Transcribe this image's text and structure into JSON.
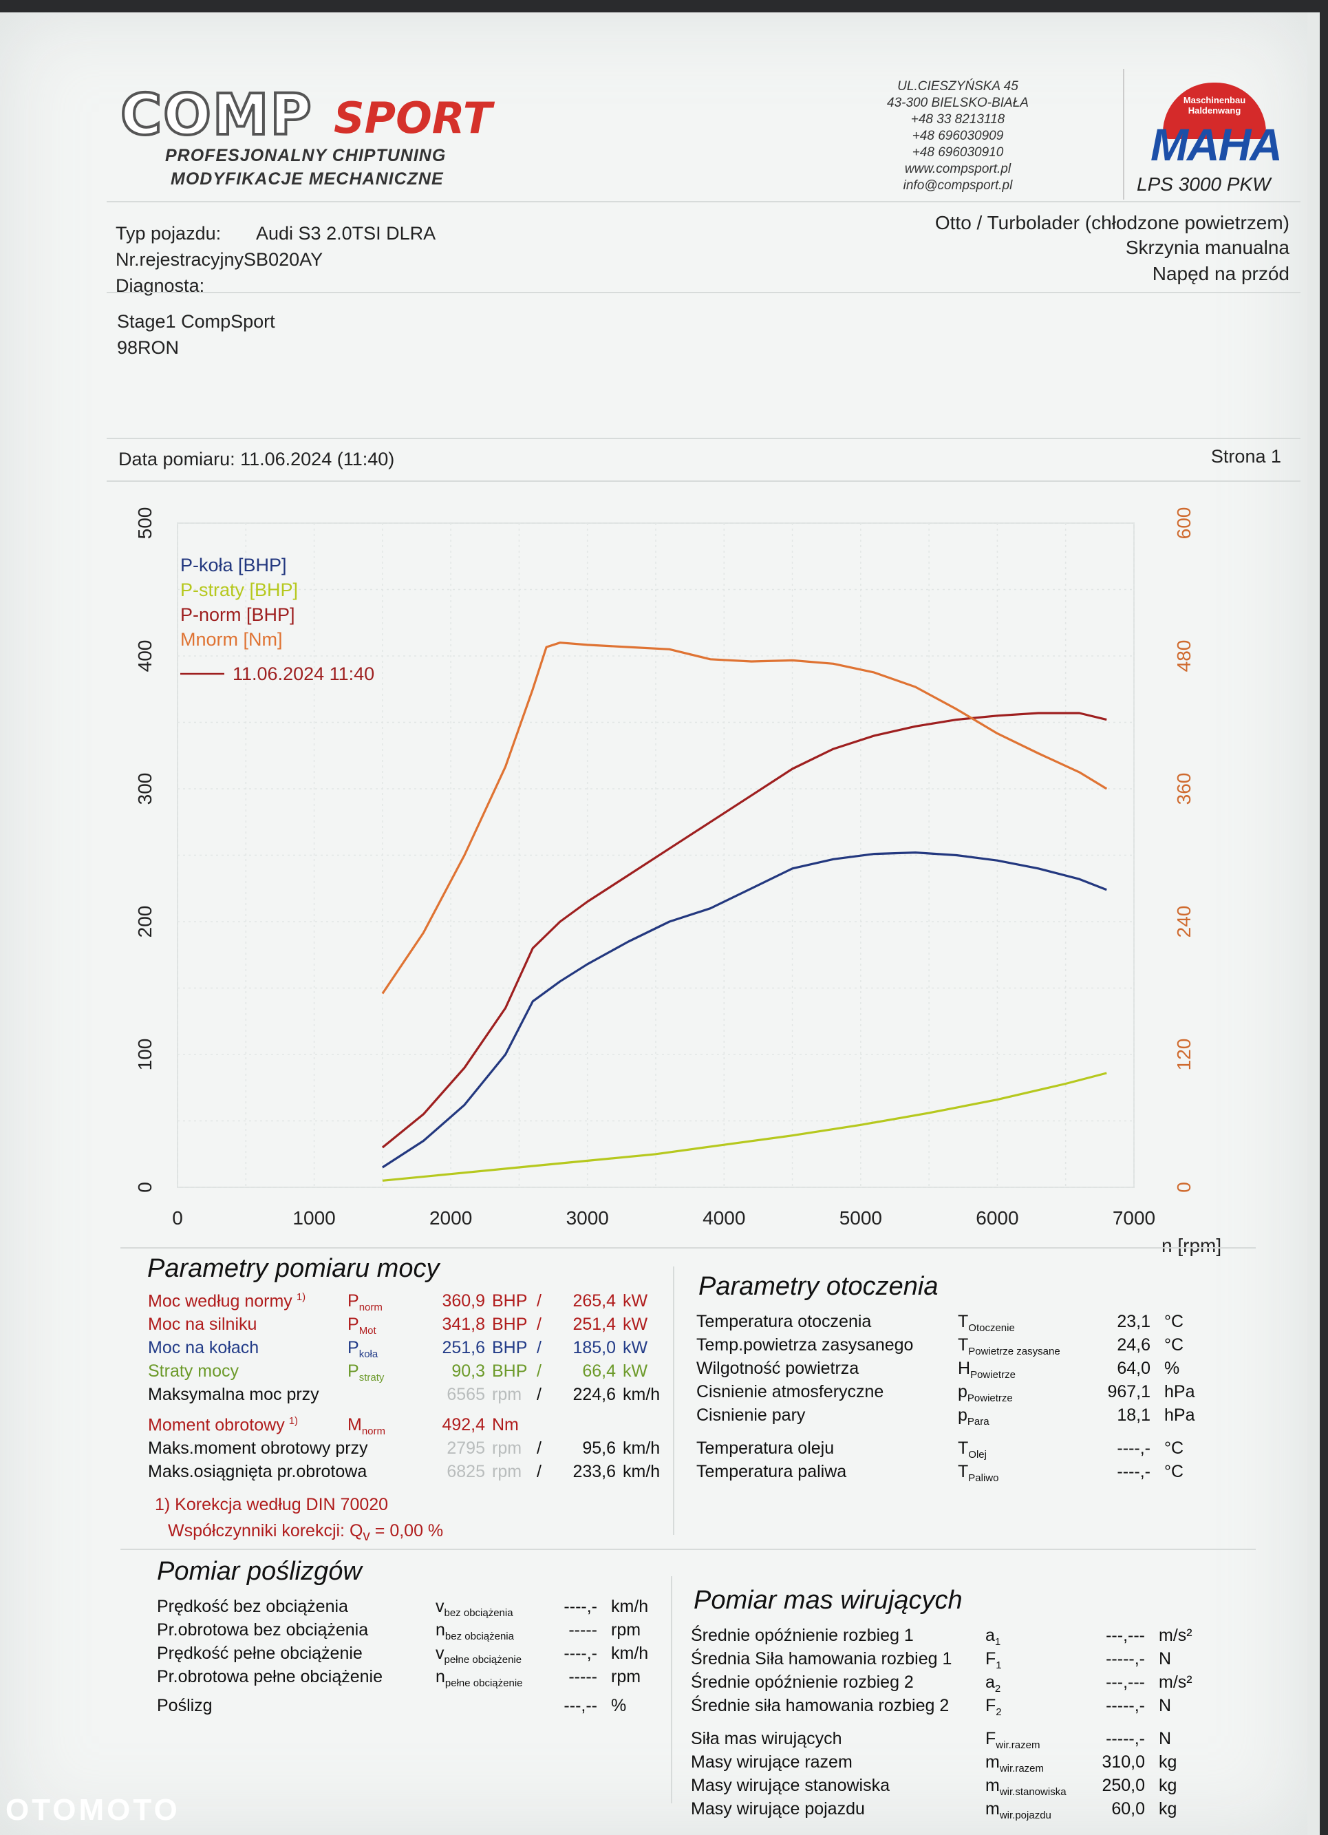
{
  "header": {
    "logo_main": "COMP",
    "logo_accent": "SPORT",
    "tagline1": "PROFESJONALNY CHIPTUNING",
    "tagline2": "MODYFIKACJE MECHANICZNE",
    "address": [
      "UL.CIESZYŃSKA 45",
      "43-300 BIELSKO-BIAŁA",
      "+48 33 8213118",
      "+48 696030909",
      "+48 696030910",
      "www.compsport.pl",
      "info@compsport.pl"
    ],
    "maha_circle_text": "Maschinenbau Haldenwang",
    "maha_word": "MAHA",
    "dyno_model": "LPS 3000 PKW"
  },
  "vehicle": {
    "type_label": "Typ pojazdu:",
    "type_value": "Audi S3 2.0TSI DLRA",
    "reg_line": "Nr.rejestracyjnySB020AY",
    "diag_label": "Diagnosta:",
    "engine": "Otto / Turbolader (chłodzone powietrzem)",
    "gearbox": "Skrzynia manualna",
    "drive": "Napęd na przód",
    "note1": "Stage1 CompSport",
    "note2": "98RON",
    "date_line": "Data pomiaru: 11.06.2024 (11:40)",
    "page": "Strona 1"
  },
  "chart_data": {
    "type": "line",
    "x_ticks": [
      "0",
      "1000",
      "2000",
      "3000",
      "4000",
      "5000",
      "6000",
      "7000"
    ],
    "y_left_ticks": [
      "0",
      "100",
      "200",
      "300",
      "400",
      "500"
    ],
    "y_right_ticks": [
      "0",
      "120",
      "240",
      "360",
      "480",
      "600"
    ],
    "xlabel": "n [rpm]",
    "xlim": [
      0,
      7000
    ],
    "ylim_left": [
      0,
      500
    ],
    "ylim_right": [
      0,
      600
    ],
    "grid": true,
    "legend_position": "top-left",
    "legend_date": "11.06.2024 11:40",
    "series": [
      {
        "name": "P-koła [BHP]",
        "color": "#23387f",
        "axis": "left",
        "x": [
          1500,
          1800,
          2100,
          2400,
          2600,
          2800,
          3000,
          3300,
          3600,
          3900,
          4200,
          4500,
          4800,
          5100,
          5400,
          5700,
          6000,
          6300,
          6600,
          6800
        ],
        "y": [
          15,
          35,
          62,
          100,
          140,
          155,
          168,
          185,
          200,
          210,
          225,
          240,
          247,
          251,
          252,
          250,
          246,
          240,
          232,
          224
        ]
      },
      {
        "name": "P-straty [BHP]",
        "color": "#b6c81e",
        "axis": "left",
        "x": [
          1500,
          2000,
          2500,
          3000,
          3500,
          4000,
          4500,
          5000,
          5500,
          6000,
          6500,
          6800
        ],
        "y": [
          5,
          10,
          15,
          20,
          25,
          32,
          39,
          47,
          56,
          66,
          78,
          86
        ]
      },
      {
        "name": "P-norm [BHP]",
        "color": "#9e1f1f",
        "axis": "left",
        "x": [
          1500,
          1800,
          2100,
          2400,
          2600,
          2800,
          3000,
          3300,
          3600,
          3900,
          4200,
          4500,
          4800,
          5100,
          5400,
          5700,
          6000,
          6300,
          6600,
          6800
        ],
        "y": [
          30,
          55,
          90,
          135,
          180,
          200,
          215,
          235,
          255,
          275,
          295,
          315,
          330,
          340,
          347,
          352,
          355,
          357,
          357,
          352
        ]
      },
      {
        "name": "Mnorm [Nm]",
        "color": "#df7333",
        "axis": "right",
        "x": [
          1500,
          1800,
          2100,
          2400,
          2600,
          2700,
          2800,
          3000,
          3300,
          3600,
          3900,
          4200,
          4500,
          4800,
          5100,
          5400,
          5700,
          6000,
          6300,
          6600,
          6800
        ],
        "y": [
          175,
          230,
          300,
          380,
          450,
          488,
          492,
          490,
          488,
          486,
          477,
          475,
          476,
          473,
          465,
          452,
          432,
          410,
          392,
          375,
          360
        ]
      }
    ]
  },
  "power_params": {
    "title": "Parametry pomiaru mocy",
    "rows": [
      {
        "label": "Moc według normy",
        "sup": "1)",
        "sym": "P",
        "sub": "norm",
        "v1": "360,9",
        "u1": "BHP",
        "sep": "/",
        "v2": "265,4",
        "u2": "kW",
        "cls": "red"
      },
      {
        "label": "Moc na silniku",
        "sup": "",
        "sym": "P",
        "sub": "Mot",
        "v1": "341,8",
        "u1": "BHP",
        "sep": "/",
        "v2": "251,4",
        "u2": "kW",
        "cls": "red"
      },
      {
        "label": "Moc na kołach",
        "sup": "",
        "sym": "P",
        "sub": "koła",
        "v1": "251,6",
        "u1": "BHP",
        "sep": "/",
        "v2": "185,0",
        "u2": "kW",
        "cls": "blue"
      },
      {
        "label": "Straty mocy",
        "sup": "",
        "sym": "P",
        "sub": "straty",
        "v1": "90,3",
        "u1": "BHP",
        "sep": "/",
        "v2": "66,4",
        "u2": "kW",
        "cls": "green"
      },
      {
        "label": "Maksymalna moc przy",
        "sup": "",
        "sym": "",
        "sub": "",
        "v1": "6565",
        "u1": "rpm",
        "sep": "/",
        "v2": "224,6",
        "u2": "km/h",
        "cls": "dark"
      },
      {
        "label": "Moment obrotowy",
        "sup": "1)",
        "sym": "M",
        "sub": "norm",
        "v1": "492,4",
        "u1": "Nm",
        "sep": "",
        "v2": "",
        "u2": "",
        "cls": "red"
      },
      {
        "label": "Maks.moment obrotowy przy",
        "sup": "",
        "sym": "",
        "sub": "",
        "v1": "2795",
        "u1": "rpm",
        "sep": "/",
        "v2": "95,6",
        "u2": "km/h",
        "cls": "dark"
      },
      {
        "label": "Maks.osiągnięta pr.obrotowa",
        "sup": "",
        "sym": "",
        "sub": "",
        "v1": "6825",
        "u1": "rpm",
        "sep": "/",
        "v2": "233,6",
        "u2": "km/h",
        "cls": "dark"
      }
    ],
    "footnote1": "1) Korekcja według DIN 70020",
    "footnote2_label": "Współczynniki korekcji: Q",
    "footnote2_sub": "v",
    "footnote2_value": "= 0,00 %"
  },
  "env_params": {
    "title": "Parametry otoczenia",
    "rows": [
      {
        "label": "Temperatura otoczenia",
        "sym": "T",
        "sub": "Otoczenie",
        "val": "23,1",
        "unit": "°C"
      },
      {
        "label": "Temp.powietrza zasysanego",
        "sym": "T",
        "sub": "Powietrze zasysane",
        "val": "24,6",
        "unit": "°C"
      },
      {
        "label": "Wilgotność powietrza",
        "sym": "H",
        "sub": "Powietrze",
        "val": "64,0",
        "unit": "%"
      },
      {
        "label": "Cisnienie atmosferyczne",
        "sym": "p",
        "sub": "Powietrze",
        "val": "967,1",
        "unit": "hPa"
      },
      {
        "label": "Cisnienie pary",
        "sym": "p",
        "sub": "Para",
        "val": "18,1",
        "unit": "hPa"
      },
      {
        "label": "Temperatura oleju",
        "sym": "T",
        "sub": "Olej",
        "val": "----,-",
        "unit": "°C"
      },
      {
        "label": "Temperatura paliwa",
        "sym": "T",
        "sub": "Paliwo",
        "val": "----,-",
        "unit": "°C"
      }
    ]
  },
  "slip": {
    "title": "Pomiar poślizgów",
    "rows": [
      {
        "label": "Prędkość bez obciążenia",
        "sym": "v",
        "sub": "bez obciążenia",
        "val": "----,-",
        "unit": "km/h"
      },
      {
        "label": "Pr.obrotowa bez obciążenia",
        "sym": "n",
        "sub": "bez obciążenia",
        "val": "-----",
        "unit": "rpm"
      },
      {
        "label": "Prędkość pełne obciążenie",
        "sym": "v",
        "sub": "pełne obciążenie",
        "val": "----,-",
        "unit": "km/h"
      },
      {
        "label": "Pr.obrotowa pełne obciążenie",
        "sym": "n",
        "sub": "pełne obciążenie",
        "val": "-----",
        "unit": "rpm"
      },
      {
        "label": "Poślizg",
        "sym": "",
        "sub": "",
        "val": "---,--",
        "unit": "%"
      }
    ]
  },
  "inertia": {
    "title": "Pomiar mas wirujących",
    "rows": [
      {
        "label": "Średnie opóźnienie rozbieg 1",
        "sym": "a",
        "sub": "1",
        "val": "---,---",
        "unit": "m/s²"
      },
      {
        "label": "Średnia Siła hamowania rozbieg 1",
        "sym": "F",
        "sub": "1",
        "val": "-----,-",
        "unit": "N"
      },
      {
        "label": "Średnie opóźnienie rozbieg 2",
        "sym": "a",
        "sub": "2",
        "val": "---,---",
        "unit": "m/s²"
      },
      {
        "label": "Średnie siła hamowania rozbieg 2",
        "sym": "F",
        "sub": "2",
        "val": "-----,-",
        "unit": "N"
      },
      {
        "label": "Siła mas wirujących",
        "sym": "F",
        "sub": "wir.razem",
        "val": "-----,-",
        "unit": "N"
      },
      {
        "label": "Masy wirujące razem",
        "sym": "m",
        "sub": "wir.razem",
        "val": "310,0",
        "unit": "kg"
      },
      {
        "label": "Masy wirujące stanowiska",
        "sym": "m",
        "sub": "wir.stanowiska",
        "val": "250,0",
        "unit": "kg"
      },
      {
        "label": "Masy wirujące pojazdu",
        "sym": "m",
        "sub": "wir.pojazdu",
        "val": "60,0",
        "unit": "kg"
      }
    ]
  },
  "watermark": "OTOMOTO"
}
